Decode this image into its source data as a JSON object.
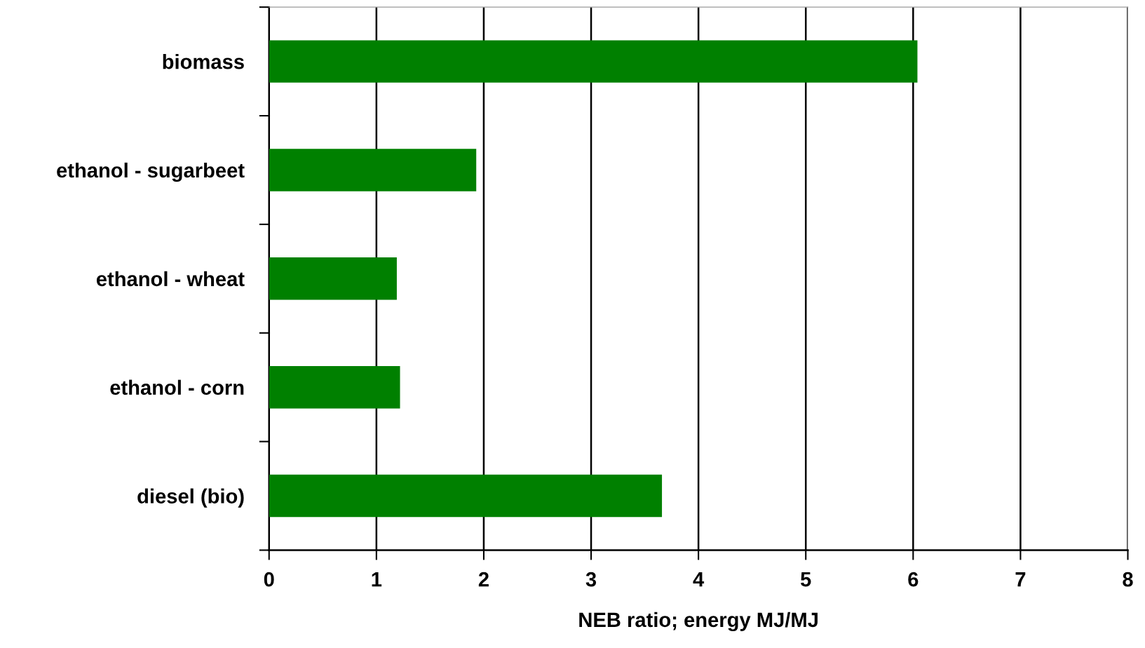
{
  "chart_data": {
    "type": "bar",
    "orientation": "horizontal",
    "categories": [
      "biomass",
      "ethanol - sugarbeet",
      "ethanol - wheat",
      "ethanol - corn",
      "diesel (bio)"
    ],
    "values": [
      6.04,
      1.93,
      1.19,
      1.22,
      3.66
    ],
    "color": "#008000",
    "xlabel": "NEB ratio; energy MJ/MJ",
    "xlim": [
      0,
      8
    ],
    "xticks": [
      0,
      1,
      2,
      3,
      4,
      5,
      6,
      7,
      8
    ],
    "grid": "x",
    "legend": false
  }
}
